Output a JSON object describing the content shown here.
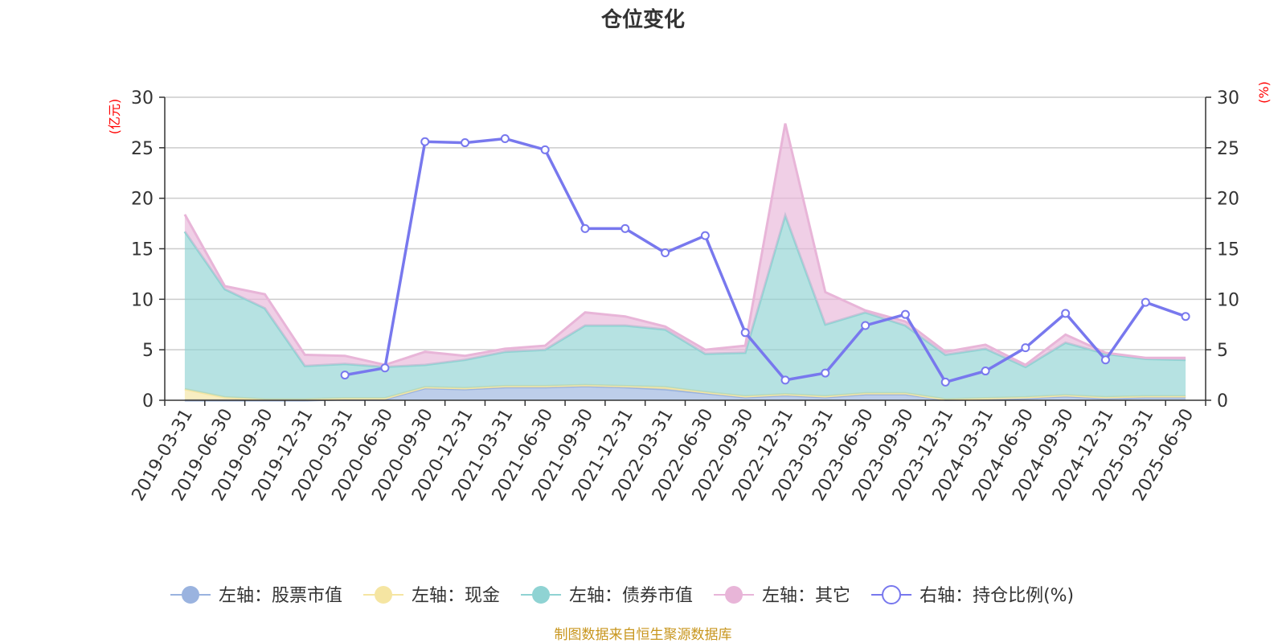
{
  "chart_data": {
    "type": "area",
    "title": "仓位变化",
    "left_axis": {
      "unit_label": "(亿元)",
      "ticks": [
        "0",
        "5",
        "10",
        "15",
        "20",
        "25",
        "30"
      ],
      "range": [
        0,
        30
      ]
    },
    "right_axis": {
      "unit_label": "(%)",
      "ticks": [
        "0",
        "5",
        "10",
        "15",
        "20",
        "25",
        "30"
      ],
      "range": [
        0,
        30
      ]
    },
    "categories": [
      "2019-03-31",
      "2019-06-30",
      "2019-09-30",
      "2019-12-31",
      "2020-03-31",
      "2020-06-30",
      "2020-09-30",
      "2020-12-31",
      "2021-03-31",
      "2021-06-30",
      "2021-09-30",
      "2021-12-31",
      "2022-03-31",
      "2022-06-30",
      "2022-09-30",
      "2022-12-31",
      "2023-03-31",
      "2023-06-30",
      "2023-09-30",
      "2023-12-31",
      "2024-03-31",
      "2024-06-30",
      "2024-09-30",
      "2024-12-31",
      "2025-03-31",
      "2025-06-30"
    ],
    "series": [
      {
        "name": "左轴：股票市值",
        "axis": "left",
        "kind": "stacked-area",
        "color": "#9ab3df",
        "values": [
          0,
          0,
          0,
          0,
          0.1,
          0.1,
          1.2,
          1.1,
          1.3,
          1.3,
          1.4,
          1.3,
          1.1,
          0.7,
          0.3,
          0.5,
          0.3,
          0.6,
          0.6,
          0.05,
          0.1,
          0.2,
          0.4,
          0.2,
          0.3,
          0.3
        ]
      },
      {
        "name": "左轴：现金",
        "axis": "left",
        "kind": "stacked-area",
        "color": "#f5e5a2",
        "values": [
          1.1,
          0.3,
          0.1,
          0.1,
          0.1,
          0.1,
          0.1,
          0.1,
          0.1,
          0.1,
          0.1,
          0.1,
          0.2,
          0.1,
          0.1,
          0.1,
          0.1,
          0.1,
          0.1,
          0.05,
          0.1,
          0.1,
          0.1,
          0.1,
          0.1,
          0.1
        ]
      },
      {
        "name": "左轴：债券市值",
        "axis": "left",
        "kind": "stacked-area",
        "color": "#8fd3d3",
        "values": [
          15.6,
          10.7,
          9.0,
          3.3,
          3.4,
          3.1,
          2.2,
          2.8,
          3.4,
          3.6,
          5.9,
          6.0,
          5.7,
          3.8,
          4.3,
          17.7,
          7.1,
          8.0,
          6.7,
          4.4,
          4.9,
          3.0,
          5.2,
          4.3,
          3.7,
          3.6
        ]
      },
      {
        "name": "左轴：其它",
        "axis": "left",
        "kind": "stacked-area",
        "color": "#e8b5d8",
        "values": [
          1.7,
          0.3,
          1.4,
          1.1,
          0.8,
          0.2,
          1.3,
          0.4,
          0.3,
          0.4,
          1.3,
          0.9,
          0.3,
          0.4,
          0.7,
          9.1,
          3.2,
          0.2,
          0.4,
          0.3,
          0.4,
          0.2,
          0.8,
          0.1,
          0.1,
          0.2
        ]
      },
      {
        "name": "右轴：持仓比例(%)",
        "axis": "right",
        "kind": "line",
        "color": "#7878ee",
        "values": [
          null,
          null,
          null,
          null,
          2.5,
          3.2,
          25.6,
          25.5,
          25.9,
          24.8,
          17.0,
          17.0,
          14.6,
          16.3,
          6.7,
          2.0,
          2.7,
          7.4,
          8.5,
          1.8,
          2.9,
          5.2,
          8.6,
          4.0,
          9.7,
          8.3
        ]
      }
    ],
    "grid": true,
    "legend_position": "bottom"
  },
  "footer": {
    "source": "制图数据来自恒生聚源数据库"
  }
}
